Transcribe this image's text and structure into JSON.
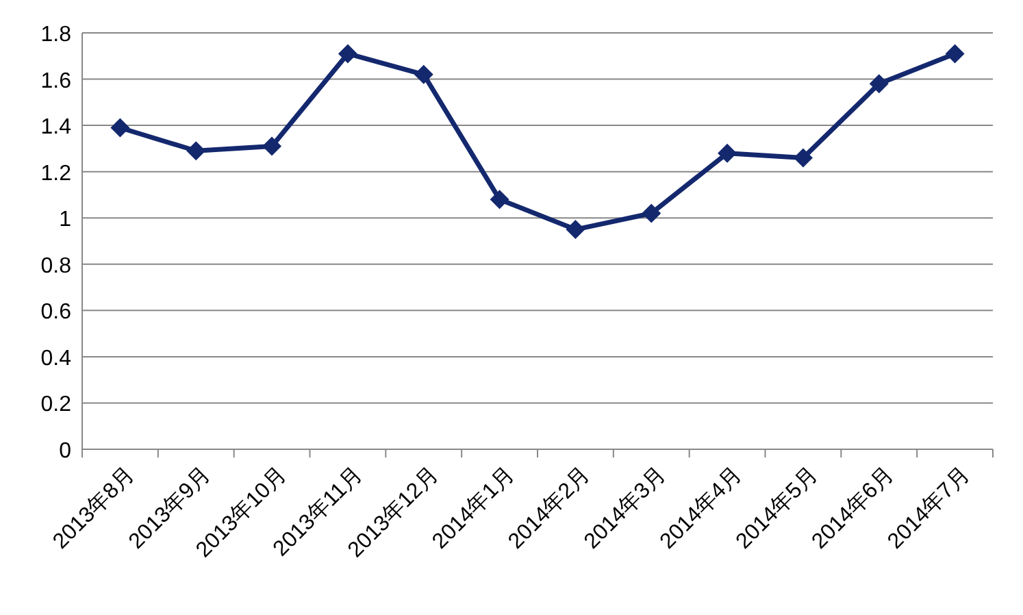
{
  "chart_data": {
    "type": "line",
    "categories": [
      "2013年8月",
      "2013年9月",
      "2013年10月",
      "2013年11月",
      "2013年12月",
      "2014年1月",
      "2014年2月",
      "2014年3月",
      "2014年4月",
      "2014年5月",
      "2014年6月",
      "2014年7月"
    ],
    "series": [
      {
        "color": "#14286e",
        "values": [
          1.39,
          1.29,
          1.31,
          1.71,
          1.62,
          1.08,
          0.95,
          1.02,
          1.28,
          1.26,
          1.58,
          1.71
        ]
      }
    ],
    "ylim": [
      0,
      1.8
    ],
    "yticks": [
      0,
      0.2,
      0.4,
      0.6,
      0.8,
      1,
      1.2,
      1.4,
      1.6,
      1.8
    ],
    "grid": "y",
    "marker": "diamond",
    "line_style": "solid"
  }
}
